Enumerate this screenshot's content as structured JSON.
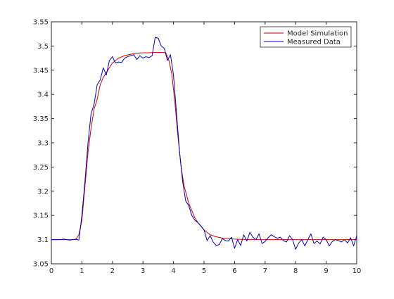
{
  "colors": {
    "model": "#cc0000",
    "measured": "#0000bb",
    "axis": "#262626",
    "background": "#ffffff"
  },
  "legend": {
    "position": "top-right",
    "entries": [
      "Model Simulation",
      "Measured Data"
    ]
  },
  "chart_data": {
    "type": "line",
    "title": "",
    "xlabel": "",
    "ylabel": "",
    "xlim": [
      0,
      10
    ],
    "ylim": [
      3.05,
      3.55
    ],
    "grid": false,
    "x_ticks": [
      0,
      1,
      2,
      3,
      4,
      5,
      6,
      7,
      8,
      9,
      10
    ],
    "x_tick_labels": [
      "0",
      "1",
      "2",
      "3",
      "4",
      "5",
      "6",
      "7",
      "8",
      "9",
      "10"
    ],
    "y_ticks": [
      3.05,
      3.1,
      3.15,
      3.2,
      3.25,
      3.3,
      3.35,
      3.4,
      3.45,
      3.5,
      3.55
    ],
    "y_tick_labels": [
      "3.05",
      "3.1",
      "3.15",
      "3.2",
      "3.25",
      "3.3",
      "3.35",
      "3.4",
      "3.45",
      "3.5",
      "3.55"
    ],
    "series": [
      {
        "name": "Model Simulation",
        "color": "#cc0000",
        "x": [
          0,
          0.8,
          0.9,
          1.0,
          1.1,
          1.2,
          1.3,
          1.4,
          1.5,
          1.6,
          1.7,
          1.8,
          1.9,
          2.0,
          2.2,
          2.4,
          2.6,
          2.8,
          3.0,
          3.2,
          3.4,
          3.6,
          3.75,
          3.85,
          3.95,
          4.05,
          4.15,
          4.25,
          4.35,
          4.5,
          4.6,
          4.7,
          4.8,
          5.0,
          5.2,
          5.4,
          5.6,
          5.8,
          6.0,
          6.5,
          7.0,
          8.0,
          9.0,
          10.0
        ],
        "y": [
          3.1,
          3.1,
          3.11,
          3.14,
          3.21,
          3.28,
          3.33,
          3.37,
          3.39,
          3.42,
          3.435,
          3.445,
          3.455,
          3.465,
          3.475,
          3.48,
          3.483,
          3.485,
          3.486,
          3.486,
          3.487,
          3.487,
          3.486,
          3.47,
          3.44,
          3.38,
          3.31,
          3.25,
          3.21,
          3.175,
          3.16,
          3.145,
          3.135,
          3.12,
          3.11,
          3.106,
          3.103,
          3.102,
          3.101,
          3.1,
          3.1,
          3.1,
          3.1,
          3.1
        ]
      },
      {
        "name": "Measured Data",
        "color": "#0000bb",
        "x": [
          0,
          0.1,
          0.2,
          0.3,
          0.4,
          0.5,
          0.6,
          0.7,
          0.8,
          0.9,
          1.0,
          1.1,
          1.2,
          1.3,
          1.4,
          1.5,
          1.6,
          1.7,
          1.8,
          1.9,
          2.0,
          2.1,
          2.2,
          2.3,
          2.4,
          2.5,
          2.6,
          2.7,
          2.8,
          2.9,
          3.0,
          3.1,
          3.2,
          3.3,
          3.4,
          3.5,
          3.6,
          3.7,
          3.8,
          3.9,
          4.0,
          4.1,
          4.2,
          4.3,
          4.4,
          4.5,
          4.6,
          4.7,
          4.8,
          4.9,
          5.0,
          5.1,
          5.2,
          5.3,
          5.4,
          5.5,
          5.6,
          5.7,
          5.8,
          5.9,
          6.0,
          6.1,
          6.2,
          6.3,
          6.4,
          6.5,
          6.6,
          6.7,
          6.8,
          6.9,
          7.0,
          7.1,
          7.2,
          7.3,
          7.4,
          7.5,
          7.6,
          7.7,
          7.8,
          7.9,
          8.0,
          8.1,
          8.2,
          8.3,
          8.4,
          8.5,
          8.6,
          8.7,
          8.8,
          8.9,
          9.0,
          9.1,
          9.2,
          9.3,
          9.4,
          9.5,
          9.6,
          9.7,
          9.8,
          9.9,
          10.0
        ],
        "y": [
          3.1,
          3.1,
          3.1,
          3.1,
          3.101,
          3.1,
          3.099,
          3.1,
          3.101,
          3.099,
          3.15,
          3.22,
          3.3,
          3.36,
          3.38,
          3.42,
          3.43,
          3.455,
          3.44,
          3.47,
          3.478,
          3.465,
          3.467,
          3.466,
          3.475,
          3.478,
          3.48,
          3.482,
          3.472,
          3.48,
          3.475,
          3.478,
          3.476,
          3.48,
          3.518,
          3.516,
          3.5,
          3.495,
          3.47,
          3.482,
          3.44,
          3.36,
          3.28,
          3.22,
          3.18,
          3.17,
          3.15,
          3.14,
          3.135,
          3.128,
          3.12,
          3.098,
          3.108,
          3.095,
          3.088,
          3.09,
          3.102,
          3.098,
          3.097,
          3.105,
          3.082,
          3.1,
          3.088,
          3.11,
          3.097,
          3.115,
          3.105,
          3.1,
          3.112,
          3.092,
          3.096,
          3.104,
          3.11,
          3.106,
          3.103,
          3.105,
          3.098,
          3.095,
          3.108,
          3.1,
          3.08,
          3.093,
          3.1,
          3.087,
          3.1,
          3.112,
          3.092,
          3.097,
          3.091,
          3.105,
          3.1,
          3.087,
          3.096,
          3.1,
          3.098,
          3.095,
          3.1,
          3.093,
          3.104,
          3.087,
          3.108
        ]
      }
    ]
  }
}
